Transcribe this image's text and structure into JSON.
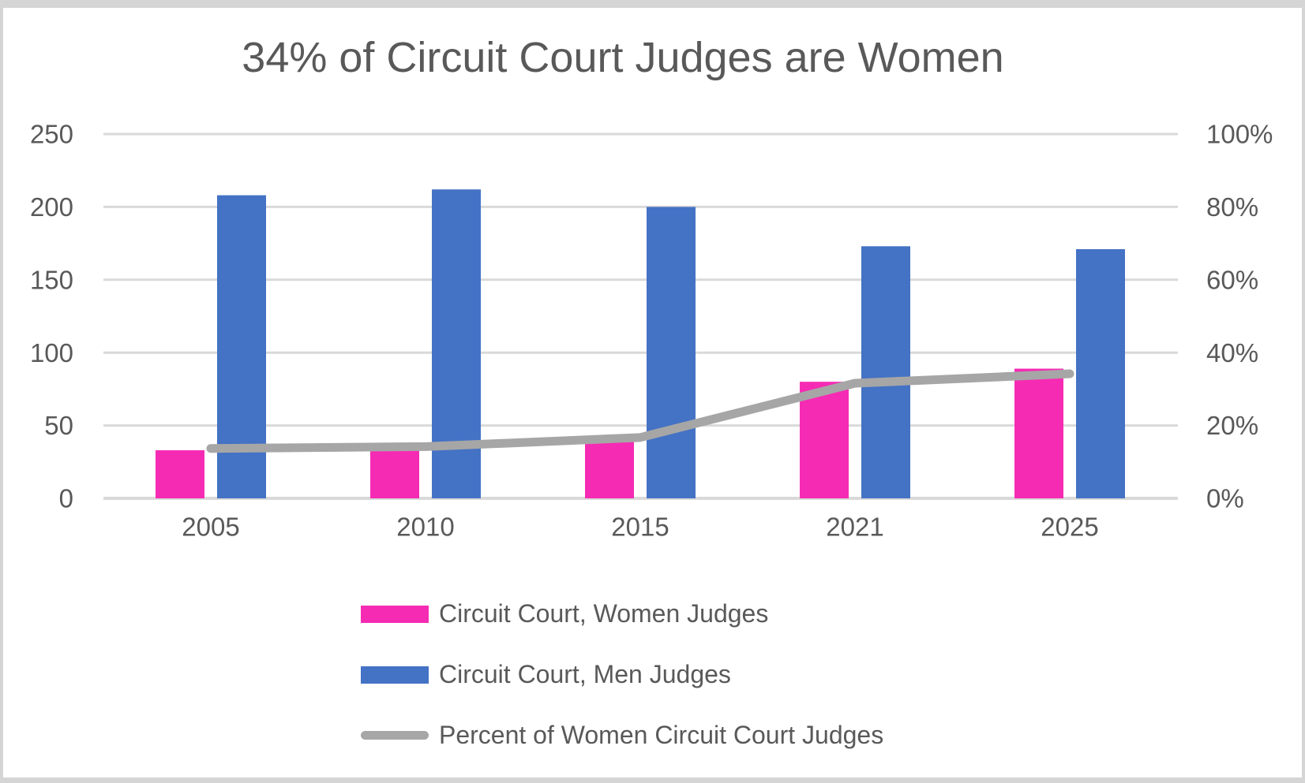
{
  "chart_data": {
    "type": "combo-bar-line",
    "title": "34% of Circuit Court Judges are Women",
    "categories": [
      "2005",
      "2010",
      "2015",
      "2021",
      "2025"
    ],
    "series": [
      {
        "name": "Circuit Court, Women Judges",
        "type": "bar",
        "axis": "left",
        "color": "#F62BB4",
        "values": [
          33,
          35,
          40,
          80,
          89
        ]
      },
      {
        "name": "Circuit Court, Men Judges",
        "type": "bar",
        "axis": "left",
        "color": "#4472C4",
        "values": [
          208,
          212,
          200,
          173,
          171
        ]
      },
      {
        "name": "Percent of Women Circuit Court Judges",
        "type": "line",
        "axis": "right",
        "color": "#A6A6A6",
        "values": [
          13.7,
          14.2,
          16.7,
          31.6,
          34.2
        ]
      }
    ],
    "left_axis": {
      "min": 0,
      "max": 250,
      "tick_step": 50,
      "tick_labels": [
        "0",
        "50",
        "100",
        "150",
        "200",
        "250"
      ]
    },
    "right_axis": {
      "min": 0,
      "max": 100,
      "tick_step": 20,
      "tick_labels": [
        "0%",
        "20%",
        "40%",
        "60%",
        "80%",
        "100%"
      ]
    },
    "grid": true,
    "legend_position": "bottom-left",
    "colors": {
      "background": "#FFFFFF",
      "frame": "#D5D5D5",
      "text": "#595959",
      "gridline": "#D9D9D9",
      "women_bar": "#F62BB4",
      "men_bar": "#4472C4",
      "percent_line": "#A6A6A6"
    }
  }
}
